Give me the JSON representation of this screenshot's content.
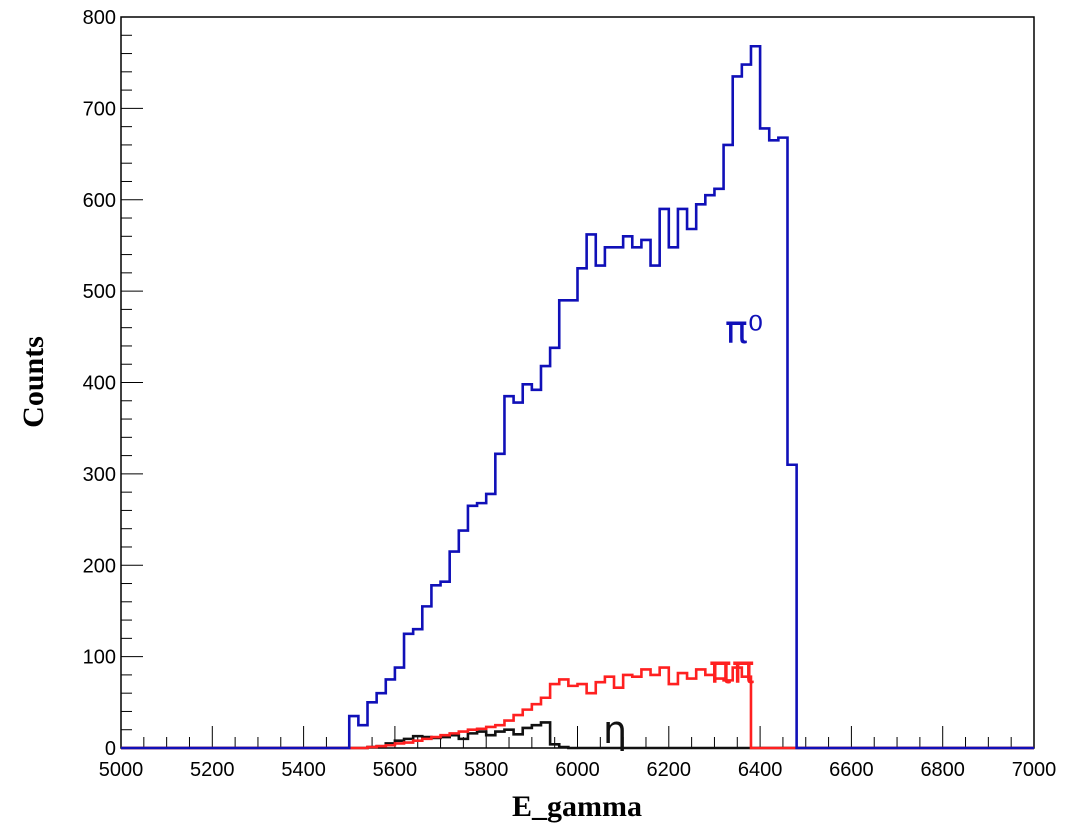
{
  "chart_data": {
    "type": "histogram",
    "xlabel": "E_gamma",
    "ylabel": "Counts",
    "xlim": [
      5000,
      7000
    ],
    "ylim": [
      0,
      800
    ],
    "x_ticks": [
      5000,
      5200,
      5400,
      5600,
      5800,
      6000,
      6200,
      6400,
      6600,
      6800,
      7000
    ],
    "y_ticks": [
      0,
      100,
      200,
      300,
      400,
      500,
      600,
      700,
      800
    ],
    "grid": false,
    "legend": "none",
    "bin_width": 20,
    "series": [
      {
        "label": "π⁰",
        "color": "#1010b8",
        "bins_start": 5500,
        "values": [
          35,
          25,
          50,
          60,
          75,
          88,
          125,
          130,
          155,
          178,
          182,
          215,
          238,
          265,
          268,
          278,
          322,
          385,
          378,
          398,
          392,
          418,
          438,
          490,
          490,
          525,
          562,
          528,
          548,
          548,
          560,
          548,
          556,
          528,
          590,
          548,
          590,
          568,
          595,
          605,
          612,
          660,
          735,
          748,
          768,
          678,
          665,
          668,
          310
        ]
      },
      {
        "label": "ππ",
        "color": "#ff2020",
        "bins_start": 5500,
        "values": [
          0,
          0,
          1,
          2,
          3,
          5,
          6,
          8,
          10,
          12,
          14,
          16,
          18,
          20,
          21,
          23,
          25,
          30,
          36,
          42,
          48,
          55,
          70,
          75,
          68,
          70,
          60,
          72,
          78,
          66,
          80,
          78,
          86,
          80,
          88,
          70,
          82,
          76,
          86,
          80,
          76,
          74,
          88,
          78,
          0
        ]
      },
      {
        "label": "η",
        "color": "#111111",
        "bins_start": 5500,
        "values": [
          0,
          0,
          1,
          2,
          5,
          8,
          10,
          13,
          12,
          11,
          12,
          14,
          10,
          16,
          18,
          14,
          18,
          20,
          15,
          22,
          25,
          28,
          4,
          1,
          0
        ]
      }
    ]
  }
}
